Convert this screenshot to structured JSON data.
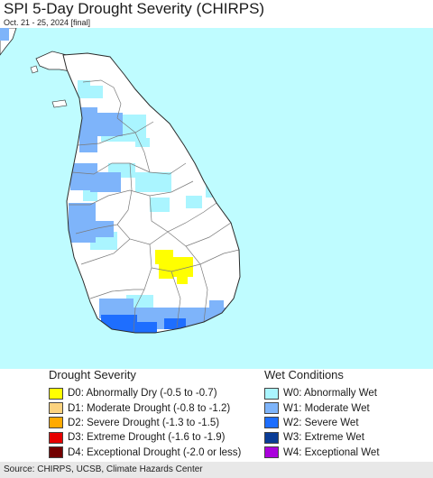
{
  "header": {
    "title": "SPI 5-Day Drought Severity (CHIRPS)",
    "subtitle": "Oct. 21 - 25, 2024 [final]"
  },
  "map": {
    "region": "Sri Lanka",
    "colors": {
      "ocean": "#bffcff",
      "land": "#ffffff",
      "boundary": "#2b2b2b",
      "district_line": "#7a7a7a"
    }
  },
  "legend": {
    "drought": {
      "heading": "Drought Severity",
      "items": [
        {
          "label": "D0: Abnormally Dry (-0.5 to -0.7)",
          "color": "#ffff00",
          "icon": "d0-swatch"
        },
        {
          "label": "D1: Moderate Drought (-0.8 to -1.2)",
          "color": "#fcd37f",
          "icon": "d1-swatch"
        },
        {
          "label": "D2: Severe Drought (-1.3 to -1.5)",
          "color": "#ffaa00",
          "icon": "d2-swatch"
        },
        {
          "label": "D3: Extreme Drought (-1.6 to -1.9)",
          "color": "#e60000",
          "icon": "d3-swatch"
        },
        {
          "label": "D4: Exceptional Drought (-2.0 or less)",
          "color": "#730000",
          "icon": "d4-swatch"
        }
      ]
    },
    "wet": {
      "heading": "Wet Conditions",
      "items": [
        {
          "label": "W0: Abnormally Wet",
          "color": "#aaf5ff",
          "icon": "w0-swatch"
        },
        {
          "label": "W1: Moderate Wet",
          "color": "#7eb4fa",
          "icon": "w1-swatch"
        },
        {
          "label": "W2: Severe Wet",
          "color": "#1e6eff",
          "icon": "w2-swatch"
        },
        {
          "label": "W3: Extreme Wet",
          "color": "#0a3c96",
          "icon": "w3-swatch"
        },
        {
          "label": "W4: Exceptional Wet",
          "color": "#aa00dc",
          "icon": "w4-swatch"
        }
      ]
    }
  },
  "footer": {
    "source": "Source: CHIRPS, UCSB, Climate Hazards Center"
  }
}
